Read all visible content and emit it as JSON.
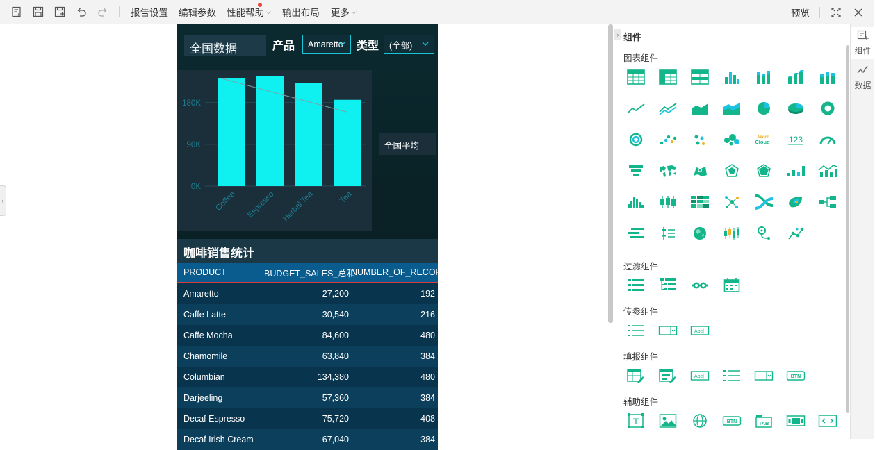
{
  "toolbar": {
    "icons": [
      "new-report-icon",
      "save-icon",
      "save-as-icon",
      "undo-icon",
      "redo-icon"
    ],
    "menus": {
      "report_settings": "报告设置",
      "edit_params": "编辑参数",
      "perf_help": "性能帮助",
      "output_layout": "输出布局",
      "more": "更多"
    },
    "preview": "预览",
    "right_icons": [
      "fullscreen-icon",
      "close-icon"
    ]
  },
  "report": {
    "title": "全国数据",
    "product_label": "产品",
    "product_value": "Amaretto",
    "type_label": "类型",
    "type_value": "(全部)",
    "avg_label": "全国平均",
    "table_title": "咖啡销售统计"
  },
  "chart_data": {
    "type": "bar",
    "categories": [
      "Coffee",
      "Espresso",
      "Herbal Tea",
      "Tea"
    ],
    "values": [
      232000,
      238000,
      222000,
      186000
    ],
    "overlay_line": {
      "from": 232000,
      "to": 160000
    },
    "yticks": [
      "0K",
      "90K",
      "180K"
    ],
    "ylim": [
      0,
      250000
    ],
    "bar_color": "#0ff0f0",
    "grid": true
  },
  "table": {
    "columns": [
      "PRODUCT",
      "BUDGET_SALES_总和",
      "NUMBER_OF_RECORDS"
    ],
    "rows": [
      [
        "Amaretto",
        "27,200",
        "192"
      ],
      [
        "Caffe Latte",
        "30,540",
        "216"
      ],
      [
        "Caffe Mocha",
        "84,600",
        "480"
      ],
      [
        "Chamomile",
        "63,840",
        "384"
      ],
      [
        "Columbian",
        "134,380",
        "480"
      ],
      [
        "Darjeeling",
        "57,360",
        "384"
      ],
      [
        "Decaf Espresso",
        "75,720",
        "408"
      ],
      [
        "Decaf Irish Cream",
        "67,040",
        "384"
      ]
    ]
  },
  "panel": {
    "title": "组件",
    "sections": {
      "chart": "图表组件",
      "filter": "过滤组件",
      "param": "传参组件",
      "fill": "填报组件",
      "aux": "辅助组件"
    },
    "tabs": {
      "components": "组件",
      "data": "数据"
    }
  },
  "colors": {
    "accent": "#13b58a",
    "cyan": "#0ff0f0",
    "header_blue": "#0a5b8e"
  }
}
